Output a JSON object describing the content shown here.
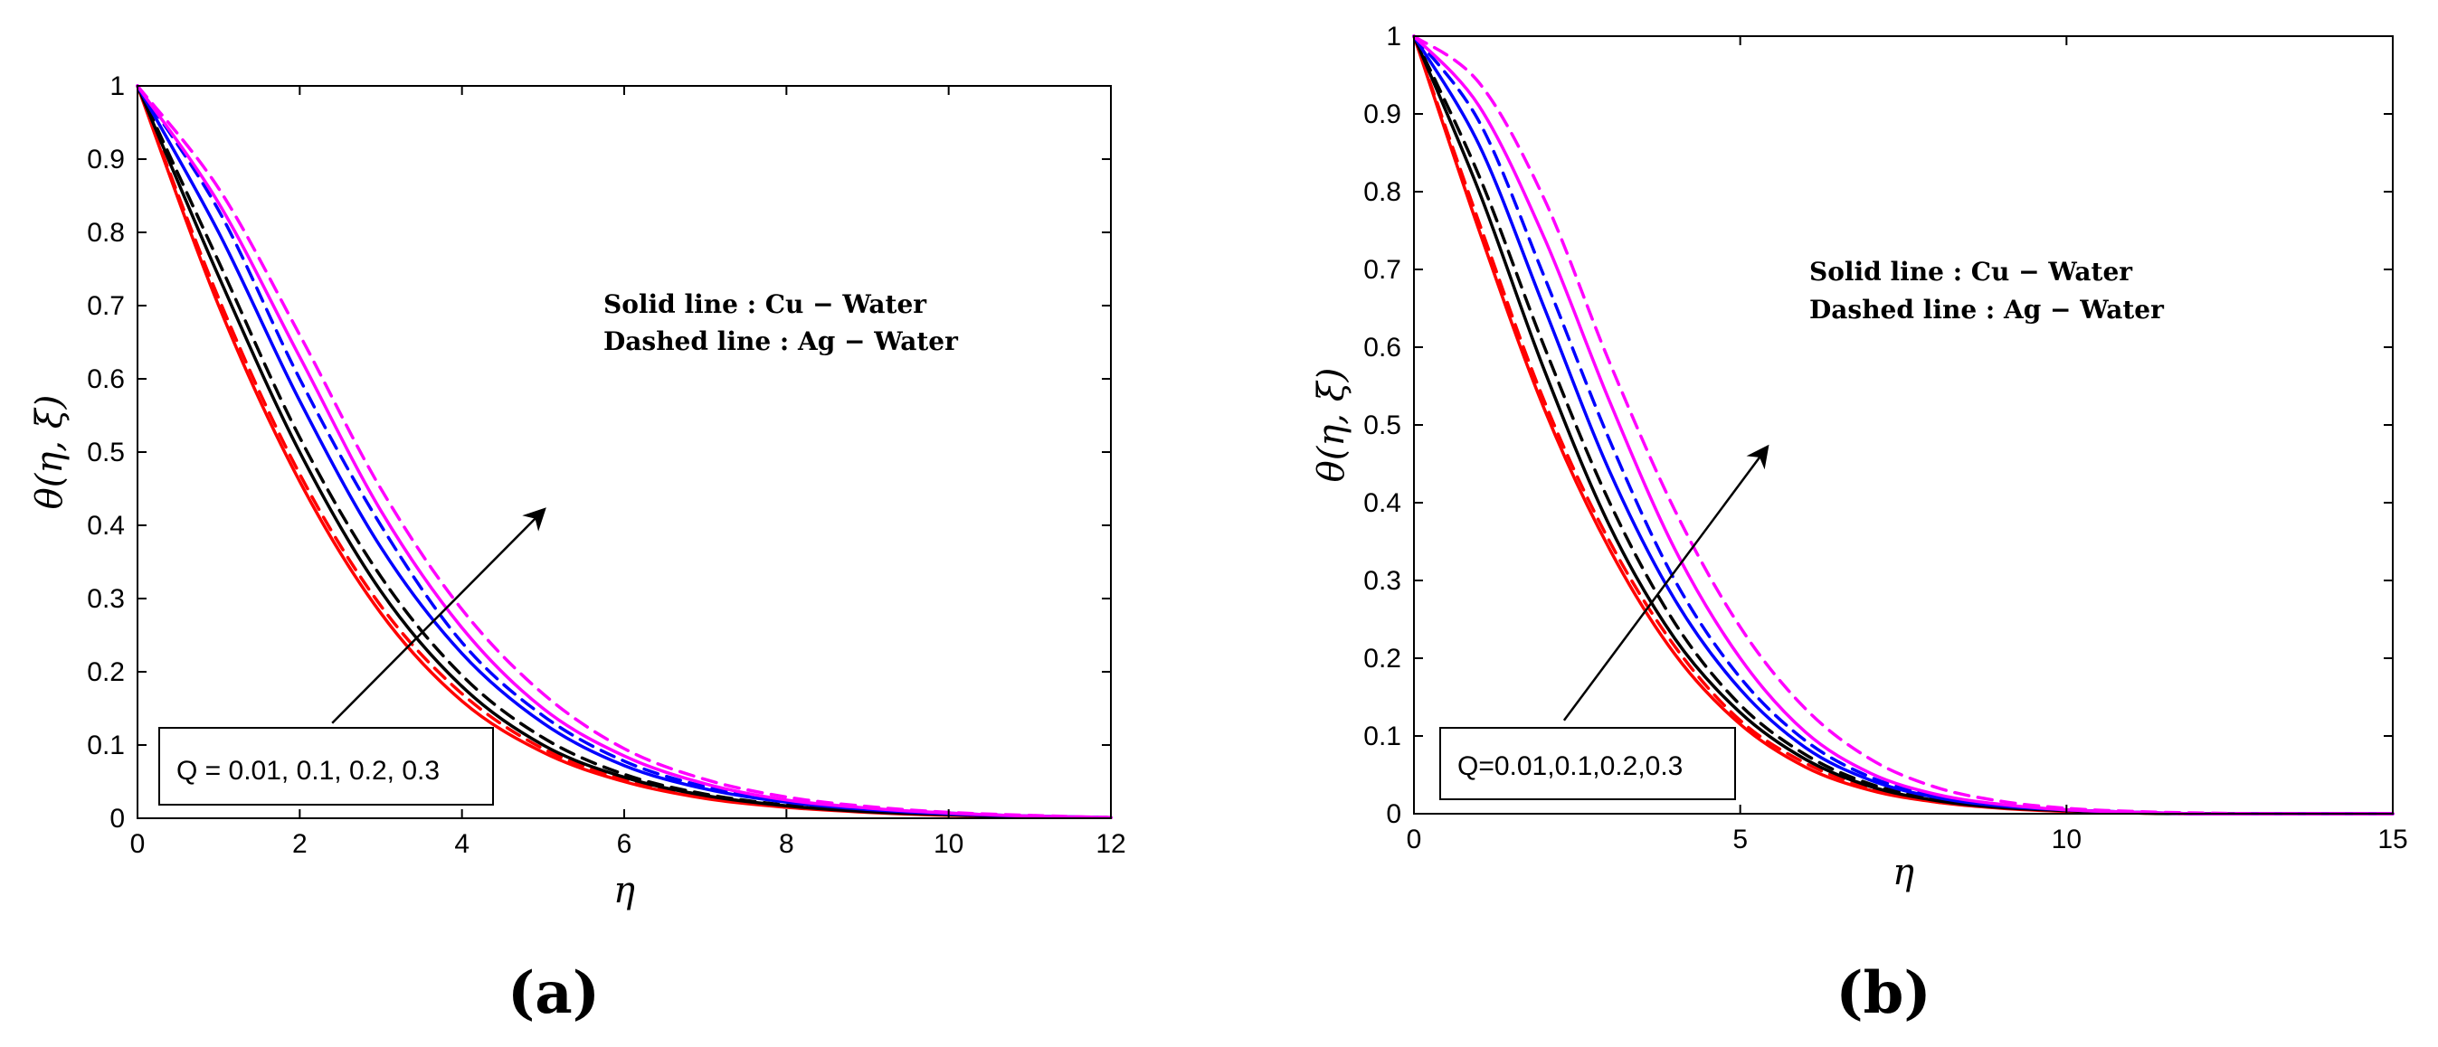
{
  "chart_data": [
    {
      "type": "line",
      "panel_label": "(a)",
      "xlabel": "η",
      "ylabel": "θ(η, ξ)",
      "xlim": [
        0,
        12
      ],
      "ylim": [
        0,
        1
      ],
      "xticks": [
        0,
        2,
        4,
        6,
        8,
        10,
        12
      ],
      "yticks": [
        0,
        0.1,
        0.2,
        0.3,
        0.4,
        0.5,
        0.6,
        0.7,
        0.8,
        0.9,
        1
      ],
      "xtick_labels": [
        "0",
        "2",
        "4",
        "6",
        "8",
        "10",
        "12"
      ],
      "ytick_labels": [
        "0",
        "0.1",
        "0.2",
        "0.3",
        "0.4",
        "0.5",
        "0.6",
        "0.7",
        "0.8",
        "0.9",
        "1"
      ],
      "legend_lines": [
        "Solid line : Cu − Water",
        "Dashed line : Ag − Water"
      ],
      "annotation": "Q = 0.01, 0.1, 0.2, 0.3",
      "arrow": {
        "from": [
          2.4,
          0.13
        ],
        "to": [
          5.0,
          0.42
        ]
      },
      "x": [
        0,
        1,
        2,
        3,
        4,
        5,
        6,
        7,
        8,
        9,
        10,
        11,
        12
      ],
      "series": [
        {
          "name": "Q = 0.01 Cu-Water",
          "color": "#ff0000",
          "style": "solid",
          "values": [
            1,
            0.7,
            0.46,
            0.28,
            0.16,
            0.09,
            0.05,
            0.027,
            0.015,
            0.008,
            0.004,
            0.002,
            0.001
          ]
        },
        {
          "name": "Q = 0.01 Ag-Water",
          "color": "#ff0000",
          "style": "dashed",
          "values": [
            1,
            0.71,
            0.47,
            0.29,
            0.17,
            0.095,
            0.053,
            0.029,
            0.016,
            0.009,
            0.005,
            0.002,
            0.001
          ]
        },
        {
          "name": "Q = 0.1 Cu-Water",
          "color": "#000000",
          "style": "solid",
          "values": [
            1,
            0.74,
            0.5,
            0.31,
            0.18,
            0.1,
            0.056,
            0.031,
            0.017,
            0.009,
            0.005,
            0.002,
            0.001
          ]
        },
        {
          "name": "Q = 0.1 Ag-Water",
          "color": "#000000",
          "style": "dashed",
          "values": [
            1,
            0.76,
            0.52,
            0.33,
            0.195,
            0.11,
            0.06,
            0.033,
            0.018,
            0.01,
            0.005,
            0.002,
            0.001
          ]
        },
        {
          "name": "Q = 0.2 Cu-Water",
          "color": "#0000ff",
          "style": "solid",
          "values": [
            1,
            0.8,
            0.57,
            0.37,
            0.225,
            0.13,
            0.072,
            0.04,
            0.022,
            0.012,
            0.006,
            0.003,
            0.001
          ]
        },
        {
          "name": "Q = 0.2 Ag-Water",
          "color": "#0000ff",
          "style": "dashed",
          "values": [
            1,
            0.83,
            0.6,
            0.4,
            0.24,
            0.14,
            0.078,
            0.043,
            0.023,
            0.013,
            0.007,
            0.003,
            0.001
          ]
        },
        {
          "name": "Q = 0.3 Cu-Water",
          "color": "#ff00ff",
          "style": "solid",
          "values": [
            1,
            0.84,
            0.63,
            0.42,
            0.26,
            0.15,
            0.085,
            0.047,
            0.025,
            0.014,
            0.007,
            0.003,
            0.001
          ]
        },
        {
          "name": "Q = 0.3 Ag-Water",
          "color": "#ff00ff",
          "style": "dashed",
          "values": [
            1,
            0.86,
            0.66,
            0.45,
            0.285,
            0.17,
            0.095,
            0.053,
            0.029,
            0.016,
            0.008,
            0.004,
            0.001
          ]
        }
      ]
    },
    {
      "type": "line",
      "panel_label": "(b)",
      "xlabel": "η",
      "ylabel": "θ(η, ξ)",
      "xlim": [
        0,
        15
      ],
      "ylim": [
        0,
        1
      ],
      "xticks": [
        0,
        5,
        10,
        15
      ],
      "yticks": [
        0,
        0.1,
        0.2,
        0.3,
        0.4,
        0.5,
        0.6,
        0.7,
        0.8,
        0.9,
        1
      ],
      "xtick_labels": [
        "0",
        "5",
        "10",
        "15"
      ],
      "ytick_labels": [
        "0",
        "0.1",
        "0.2",
        "0.3",
        "0.4",
        "0.5",
        "0.6",
        "0.7",
        "0.8",
        "0.9",
        "1"
      ],
      "legend_lines": [
        "Solid line : Cu − Water",
        "Dashed line : Ag − Water"
      ],
      "annotation": "Q=0.01,0.1,0.2,0.3",
      "arrow": {
        "from": [
          2.3,
          0.12
        ],
        "to": [
          5.4,
          0.47
        ]
      },
      "x": [
        0,
        1,
        2,
        3,
        4,
        5,
        6,
        7,
        8,
        9,
        10,
        11,
        12,
        13,
        14,
        15
      ],
      "series": [
        {
          "name": "Q = 0.01 Cu-Water",
          "color": "#ff0000",
          "style": "solid",
          "values": [
            1,
            0.75,
            0.52,
            0.34,
            0.205,
            0.115,
            0.06,
            0.03,
            0.015,
            0.007,
            0.003,
            0.001,
            0,
            0,
            0,
            0
          ]
        },
        {
          "name": "Q = 0.01 Ag-Water",
          "color": "#ff0000",
          "style": "dashed",
          "values": [
            1,
            0.76,
            0.53,
            0.35,
            0.215,
            0.12,
            0.065,
            0.033,
            0.016,
            0.008,
            0.004,
            0.001,
            0,
            0,
            0,
            0
          ]
        },
        {
          "name": "Q = 0.1 Cu-Water",
          "color": "#000000",
          "style": "solid",
          "values": [
            1,
            0.8,
            0.57,
            0.37,
            0.225,
            0.13,
            0.07,
            0.035,
            0.017,
            0.008,
            0.004,
            0.001,
            0,
            0,
            0,
            0
          ]
        },
        {
          "name": "Q = 0.1 Ag-Water",
          "color": "#000000",
          "style": "dashed",
          "values": [
            1,
            0.82,
            0.6,
            0.4,
            0.245,
            0.14,
            0.076,
            0.038,
            0.019,
            0.009,
            0.004,
            0.002,
            0,
            0,
            0,
            0
          ]
        },
        {
          "name": "Q = 0.2 Cu-Water",
          "color": "#0000ff",
          "style": "solid",
          "values": [
            1,
            0.86,
            0.65,
            0.44,
            0.275,
            0.16,
            0.085,
            0.043,
            0.021,
            0.01,
            0.005,
            0.002,
            0,
            0,
            0,
            0
          ]
        },
        {
          "name": "Q = 0.2 Ag-Water",
          "color": "#0000ff",
          "style": "dashed",
          "values": [
            1,
            0.89,
            0.69,
            0.48,
            0.3,
            0.175,
            0.094,
            0.047,
            0.023,
            0.011,
            0.005,
            0.002,
            0,
            0,
            0,
            0
          ]
        },
        {
          "name": "Q = 0.3 Cu-Water",
          "color": "#ff00ff",
          "style": "solid",
          "values": [
            1,
            0.91,
            0.74,
            0.53,
            0.34,
            0.2,
            0.105,
            0.052,
            0.025,
            0.012,
            0.005,
            0.002,
            0,
            0,
            0,
            0
          ]
        },
        {
          "name": "Q = 0.3 Ag-Water",
          "color": "#ff00ff",
          "style": "dashed",
          "values": [
            1,
            0.94,
            0.79,
            0.58,
            0.39,
            0.24,
            0.135,
            0.07,
            0.034,
            0.016,
            0.007,
            0.003,
            0.001,
            0,
            0,
            0
          ]
        }
      ]
    }
  ]
}
